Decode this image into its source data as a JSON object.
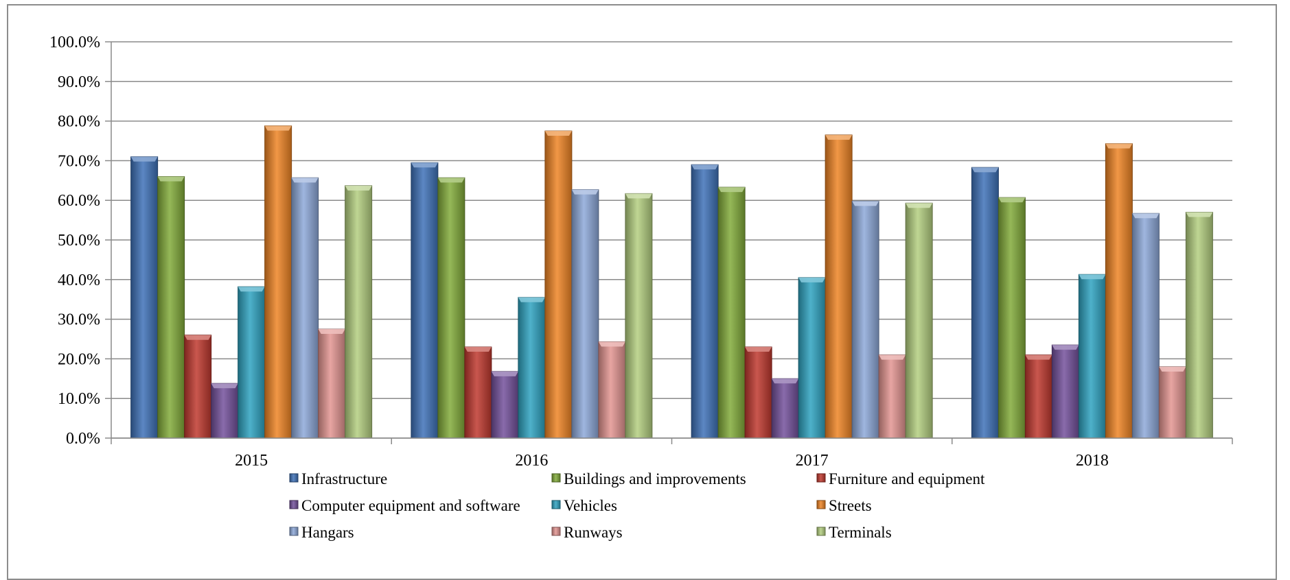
{
  "chart_data": {
    "type": "bar",
    "title": "",
    "xlabel": "",
    "ylabel": "",
    "categories": [
      "2015",
      "2016",
      "2017",
      "2018"
    ],
    "ylim": [
      0,
      100
    ],
    "ytick_labels": [
      "0.0%",
      "10.0%",
      "20.0%",
      "30.0%",
      "40.0%",
      "50.0%",
      "60.0%",
      "70.0%",
      "80.0%",
      "90.0%",
      "100.0%"
    ],
    "grid": true,
    "legend_position": "bottom",
    "series": [
      {
        "name": "Infrastructure",
        "color": "#3f72b8",
        "values": [
          71.0,
          69.5,
          69.0,
          68.3
        ]
      },
      {
        "name": "Buildings and improvements",
        "color": "#82ab3a",
        "values": [
          66.0,
          65.7,
          63.3,
          60.7
        ]
      },
      {
        "name": "Furniture and equipment",
        "color": "#c0392f",
        "values": [
          26.0,
          23.0,
          23.0,
          21.0
        ]
      },
      {
        "name": "Computer equipment and software",
        "color": "#74519c",
        "values": [
          13.8,
          16.8,
          15.0,
          23.5
        ]
      },
      {
        "name": "Vehicles",
        "color": "#2fa3c1",
        "values": [
          38.2,
          35.5,
          40.5,
          41.3
        ]
      },
      {
        "name": "Streets",
        "color": "#ee8525",
        "values": [
          78.8,
          77.5,
          76.5,
          74.3
        ]
      },
      {
        "name": "Hangars",
        "color": "#8ea9d9",
        "values": [
          65.7,
          62.7,
          59.8,
          56.7
        ]
      },
      {
        "name": "Runways",
        "color": "#e39591",
        "values": [
          27.5,
          24.3,
          21.0,
          18.0
        ]
      },
      {
        "name": "Terminals",
        "color": "#b4cf80",
        "values": [
          63.7,
          61.7,
          59.3,
          57.0
        ]
      }
    ]
  }
}
